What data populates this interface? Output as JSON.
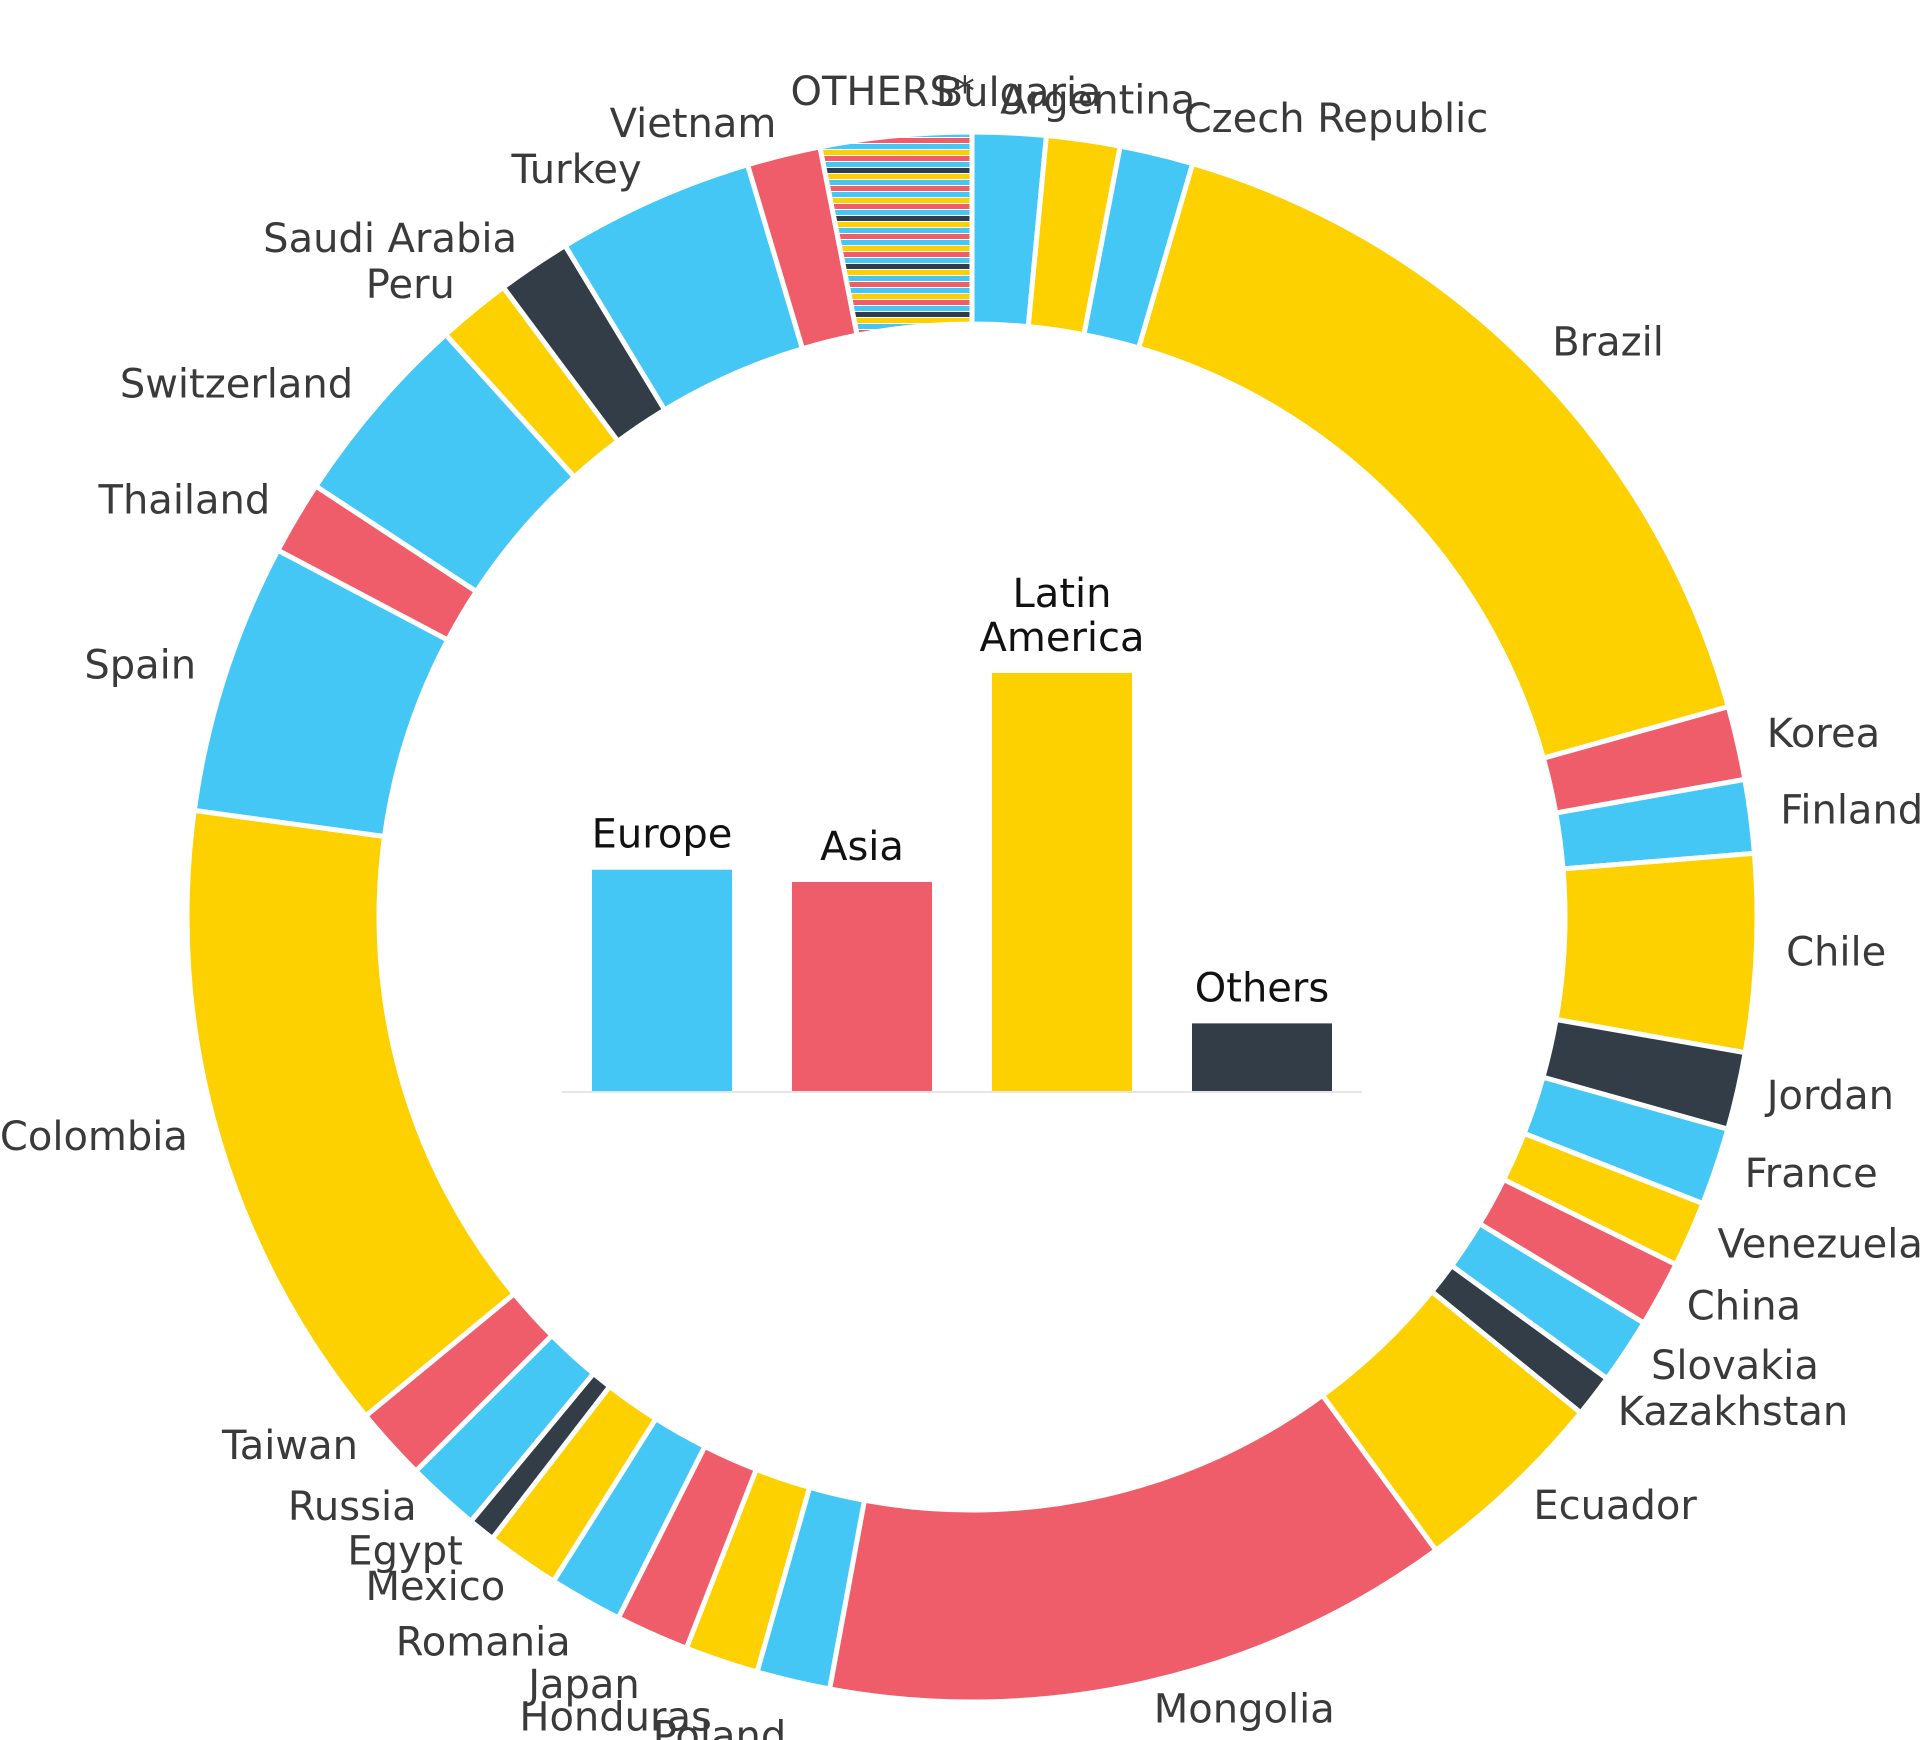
{
  "colors": {
    "Europe": "#45C7F5",
    "Asia": "#F05D6A",
    "Latin America": "#FDD000",
    "Others": "#333D47"
  },
  "chart_data": [
    {
      "type": "pie",
      "variant": "donut",
      "title": "",
      "start_angle_deg": 0,
      "direction": "clockwise",
      "slices": [
        {
          "label": "Bulgaria",
          "value": 1.9,
          "group": "Europe"
        },
        {
          "label": "Argentina",
          "value": 1.9,
          "group": "Latin America"
        },
        {
          "label": "Czech Republic",
          "value": 1.9,
          "group": "Europe"
        },
        {
          "label": "Brazil",
          "value": 20.3,
          "group": "Latin America"
        },
        {
          "label": "Korea",
          "value": 1.9,
          "group": "Asia"
        },
        {
          "label": "Finland",
          "value": 1.9,
          "group": "Europe"
        },
        {
          "label": "Chile",
          "value": 5.1,
          "group": "Latin America"
        },
        {
          "label": "Jordan",
          "value": 2.0,
          "group": "Others"
        },
        {
          "label": "France",
          "value": 2.0,
          "group": "Europe"
        },
        {
          "label": "Venezuela",
          "value": 1.7,
          "group": "Latin America"
        },
        {
          "label": "China",
          "value": 1.7,
          "group": "Asia"
        },
        {
          "label": "Slovakia",
          "value": 1.7,
          "group": "Europe"
        },
        {
          "label": "Kazakhstan",
          "value": 1.1,
          "group": "Others"
        },
        {
          "label": "Ecuador",
          "value": 5.1,
          "group": "Latin America"
        },
        {
          "label": "Mongolia",
          "value": 16.3,
          "group": "Asia"
        },
        {
          "label": "Poland",
          "value": 1.9,
          "group": "Europe"
        },
        {
          "label": "Honduras",
          "value": 1.9,
          "group": "Latin America"
        },
        {
          "label": "Japan",
          "value": 1.9,
          "group": "Asia"
        },
        {
          "label": "Romania",
          "value": 1.9,
          "group": "Europe"
        },
        {
          "label": "Mexico",
          "value": 1.9,
          "group": "Latin America"
        },
        {
          "label": "Egypt",
          "value": 0.7,
          "group": "Others"
        },
        {
          "label": "Russia",
          "value": 1.9,
          "group": "Europe"
        },
        {
          "label": "Taiwan",
          "value": 1.9,
          "group": "Asia"
        },
        {
          "label": "Colombia",
          "value": 16.5,
          "group": "Latin America"
        },
        {
          "label": "Spain",
          "value": 7.0,
          "group": "Europe"
        },
        {
          "label": "Thailand",
          "value": 1.9,
          "group": "Asia"
        },
        {
          "label": "Switzerland",
          "value": 5.1,
          "group": "Europe"
        },
        {
          "label": "Peru",
          "value": 1.9,
          "group": "Latin America"
        },
        {
          "label": "Saudi Arabia",
          "value": 1.9,
          "group": "Others"
        },
        {
          "label": "Turkey",
          "value": 5.1,
          "group": "Europe"
        },
        {
          "label": "Vietnam",
          "value": 1.9,
          "group": "Asia"
        },
        {
          "label": "OTHERS*",
          "value": 3.9,
          "group": "mixed"
        }
      ]
    },
    {
      "type": "bar",
      "title": "",
      "xlabel": "",
      "ylabel": "",
      "categories": [
        "Europe",
        "Asia",
        "Latin America",
        "Others"
      ],
      "values": [
        36,
        34,
        68,
        11
      ],
      "ylim": [
        0,
        68
      ],
      "grid": false,
      "legend": "none"
    }
  ]
}
